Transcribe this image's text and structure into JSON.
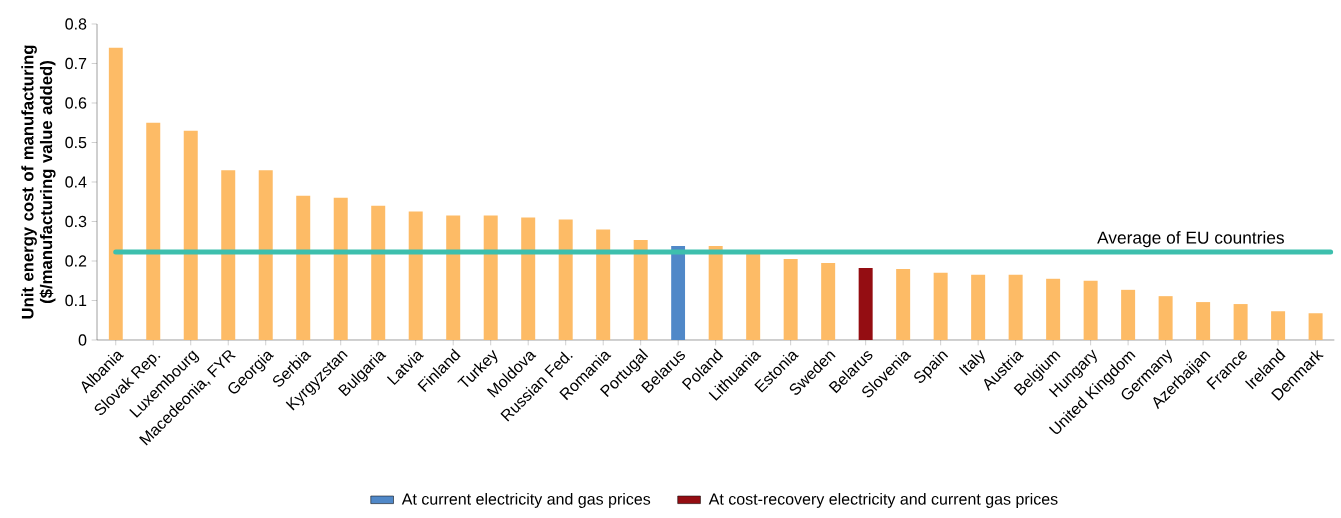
{
  "chart_data": {
    "type": "bar",
    "ylabel": "Unit energy cost of manufacturing ($/manufacturing value added)",
    "categories": [
      "Albania",
      "Slovak Rep.",
      "Luxembourg",
      "Macedeonia, FYR",
      "Georgia",
      "Serbia",
      "Kyrgyzstan",
      "Bulgaria",
      "Latvia",
      "Finland",
      "Turkey",
      "Moldova",
      "Russian Fed.",
      "Romania",
      "Portugal",
      "Belarus",
      "Poland",
      "Lithuania",
      "Estonia",
      "Sweden",
      "Belarus",
      "Slovenia",
      "Spain",
      "Italy",
      "Austria",
      "Belgium",
      "Hungary",
      "United Kingdom",
      "Germany",
      "Azerbaijan",
      "France",
      "Ireland",
      "Denmark"
    ],
    "stacked": true,
    "series": [
      {
        "color": "#fdbb66",
        "values": [
          0.74,
          0.55,
          0.53,
          0.43,
          0.43,
          0.365,
          0.36,
          0.34,
          0.325,
          0.315,
          0.315,
          0.31,
          0.305,
          0.28,
          0.253,
          null,
          0.238,
          0.22,
          0.205,
          0.195,
          null,
          0.18,
          0.17,
          0.165,
          0.165,
          0.155,
          0.15,
          0.127,
          0.111,
          0.096,
          0.091,
          0.073,
          0.068
        ]
      },
      {
        "name": "At current electricity and gas prices",
        "color": "#5088c8",
        "values": [
          null,
          null,
          null,
          null,
          null,
          null,
          null,
          null,
          null,
          null,
          null,
          null,
          null,
          null,
          null,
          0.238,
          null,
          null,
          null,
          null,
          null,
          null,
          null,
          null,
          null,
          null,
          null,
          null,
          null,
          null,
          null,
          null,
          null
        ]
      },
      {
        "name": "At cost-recovery electricity and current gas prices",
        "color": "#940d12",
        "values": [
          null,
          null,
          null,
          null,
          null,
          null,
          null,
          null,
          null,
          null,
          null,
          null,
          null,
          null,
          null,
          null,
          null,
          null,
          null,
          null,
          0.182,
          null,
          null,
          null,
          null,
          null,
          null,
          null,
          null,
          null,
          null,
          null,
          null
        ]
      }
    ],
    "ylim": [
      0,
      0.8
    ],
    "yticks": [
      0,
      0.1,
      0.2,
      0.3,
      0.4,
      0.5,
      0.6,
      0.7,
      0.8
    ],
    "ref_lines": [
      {
        "axis": "y",
        "value": 0.223,
        "label": "Average of EU countries",
        "color": "#3dbfad"
      }
    ],
    "grid": false,
    "legend": "bottom"
  }
}
